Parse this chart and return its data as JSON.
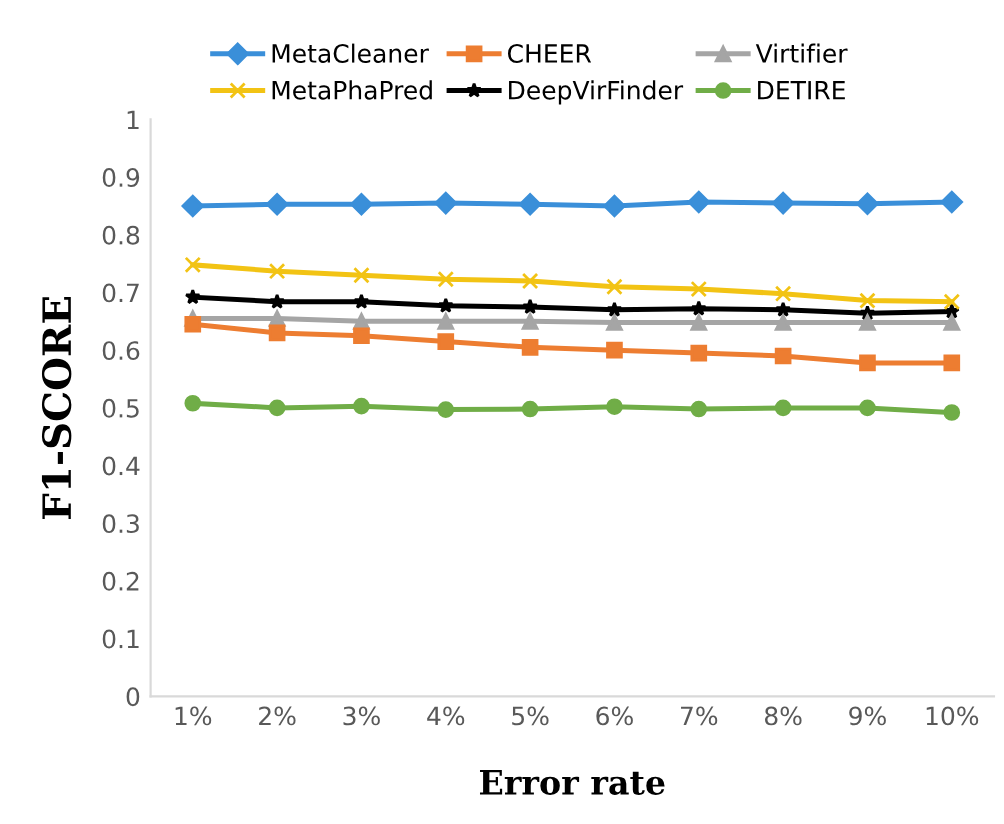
{
  "chart_data": {
    "type": "line",
    "xlabel": "Error rate",
    "ylabel": "F1-SCORE",
    "categories": [
      "1%",
      "2%",
      "3%",
      "4%",
      "5%",
      "6%",
      "7%",
      "8%",
      "9%",
      "10%"
    ],
    "series": [
      {
        "name": "MetaCleaner",
        "color": "#3a8fd9",
        "marker": "diamond",
        "values": [
          0.85,
          0.853,
          0.853,
          0.855,
          0.853,
          0.85,
          0.857,
          0.855,
          0.854,
          0.857
        ]
      },
      {
        "name": "CHEER",
        "color": "#ed7d31",
        "marker": "square",
        "values": [
          0.645,
          0.63,
          0.625,
          0.615,
          0.605,
          0.6,
          0.595,
          0.59,
          0.578,
          0.578
        ]
      },
      {
        "name": "Virtifier",
        "color": "#a5a5a5",
        "marker": "triangle",
        "values": [
          0.655,
          0.655,
          0.65,
          0.65,
          0.65,
          0.648,
          0.648,
          0.648,
          0.648,
          0.648
        ]
      },
      {
        "name": "MetaPhaPred",
        "color": "#f2c314",
        "marker": "cross",
        "values": [
          0.748,
          0.737,
          0.73,
          0.723,
          0.72,
          0.71,
          0.706,
          0.698,
          0.686,
          0.684
        ]
      },
      {
        "name": "DeepVirFinder",
        "color": "#000000",
        "marker": "star",
        "values": [
          0.692,
          0.684,
          0.684,
          0.677,
          0.675,
          0.67,
          0.672,
          0.67,
          0.664,
          0.667
        ]
      },
      {
        "name": "DETIRE",
        "color": "#70ad47",
        "marker": "circle",
        "values": [
          0.508,
          0.5,
          0.503,
          0.497,
          0.498,
          0.502,
          0.498,
          0.5,
          0.5,
          0.492
        ]
      }
    ],
    "ylim": [
      0,
      1
    ],
    "yticks": [
      0,
      0.1,
      0.2,
      0.3,
      0.4,
      0.5,
      0.6,
      0.7,
      0.8,
      0.9,
      1
    ],
    "grid": false,
    "legend": "top",
    "line_style": "solid"
  }
}
